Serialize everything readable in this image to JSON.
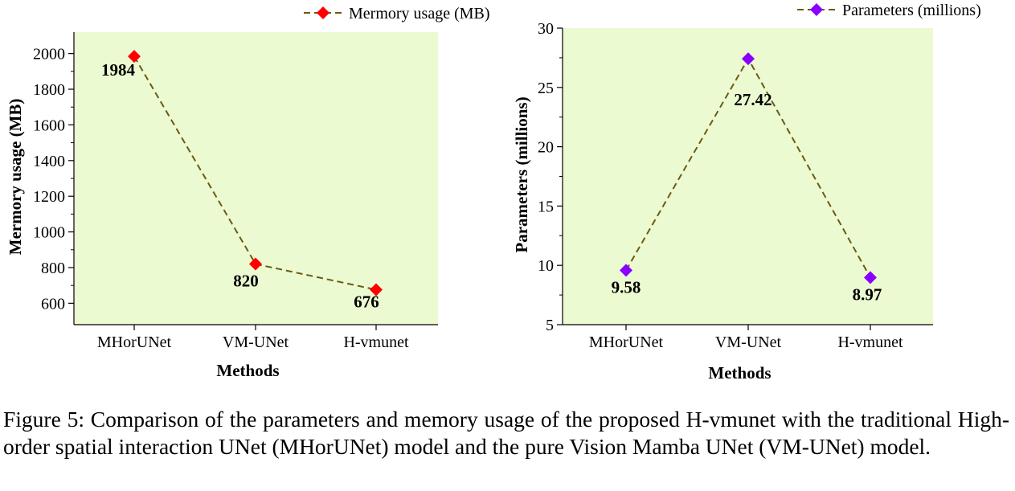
{
  "chart_data": [
    {
      "type": "line",
      "categories": [
        "MHorUNet",
        "VM-UNet",
        "H-vmunet"
      ],
      "series": [
        {
          "name": "Mermory usage (MB)",
          "values": [
            1984,
            820,
            676
          ],
          "marker_color": "#ff0000",
          "line_color": "#6b5a12"
        }
      ],
      "data_labels": [
        "1984",
        "820",
        "676"
      ],
      "xlabel": "Methods",
      "ylabel": "Mermory usage (MB)",
      "ylim": [
        480,
        2120
      ],
      "yticks": [
        600,
        800,
        1000,
        1200,
        1400,
        1600,
        1800,
        2000
      ],
      "legend_position": "top-right, outside plot",
      "plot_background": "#ebfad1",
      "grid": false
    },
    {
      "type": "line",
      "categories": [
        "MHorUNet",
        "VM-UNet",
        "H-vmunet"
      ],
      "series": [
        {
          "name": "Parameters (millions)",
          "values": [
            9.58,
            27.42,
            8.97
          ],
          "marker_color": "#8a00ff",
          "line_color": "#6b5a12"
        }
      ],
      "data_labels": [
        "9.58",
        "27.42",
        "8.97"
      ],
      "xlabel": "Methods",
      "ylabel": "Parameters (millions)",
      "ylim": [
        5,
        30
      ],
      "yticks": [
        5,
        10,
        15,
        20,
        25,
        30
      ],
      "legend_position": "top-right, outside plot",
      "plot_background": "#ebfad1",
      "grid": false
    }
  ],
  "caption": "Figure 5: Comparison of the parameters and memory usage of the proposed H-vmunet with the traditional High-order spatial interaction UNet (MHorUNet) model and the pure Vision Mamba UNet (VM-UNet) model."
}
